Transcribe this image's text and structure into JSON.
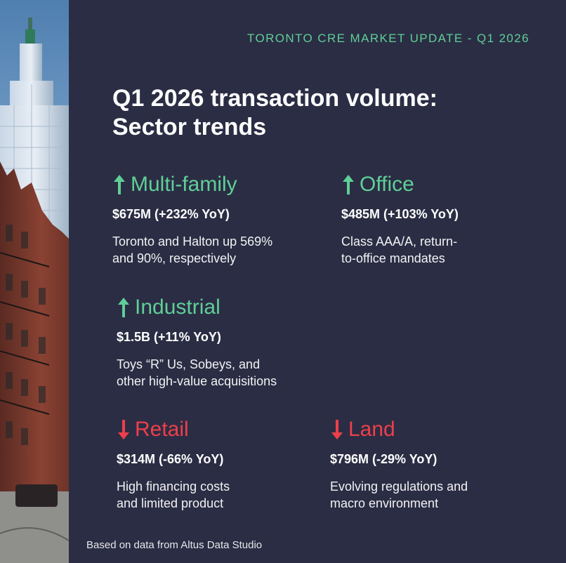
{
  "header": {
    "kicker": "TORONTO CRE MARKET UPDATE - Q1 2026"
  },
  "title": {
    "line1": "Q1 2026 transaction volume:",
    "line2": "Sector trends"
  },
  "sectors": [
    {
      "name": "Multi-family",
      "trend": "up",
      "metric": "$675M (+232% YoY)",
      "desc_line1": "Toronto and Halton up 569%",
      "desc_line2": "and 90%, respectively"
    },
    {
      "name": "Office",
      "trend": "up",
      "metric": "$485M (+103% YoY)",
      "desc_line1": "Class AAA/A, return-",
      "desc_line2": "to-office mandates"
    },
    {
      "name": "Industrial",
      "trend": "up",
      "metric": "$1.5B (+11% YoY)",
      "desc_line1": "Toys “R” Us, Sobeys, and",
      "desc_line2": "other high-value acquisitions"
    },
    {
      "name": "Retail",
      "trend": "down",
      "metric": "$314M (-66% YoY)",
      "desc_line1": "High financing costs",
      "desc_line2": "and limited product"
    },
    {
      "name": "Land",
      "trend": "down",
      "metric": "$796M (-29% YoY)",
      "desc_line1": "Evolving regulations and",
      "desc_line2": "macro environment"
    }
  ],
  "footer": {
    "source": "Based on data from Altus Data Studio"
  },
  "colors": {
    "background": "#2b2d44",
    "up": "#5fcf97",
    "down": "#ee3f4a",
    "text": "#ffffff"
  },
  "icons": {
    "up": "arrow-up-icon",
    "down": "arrow-down-icon"
  }
}
